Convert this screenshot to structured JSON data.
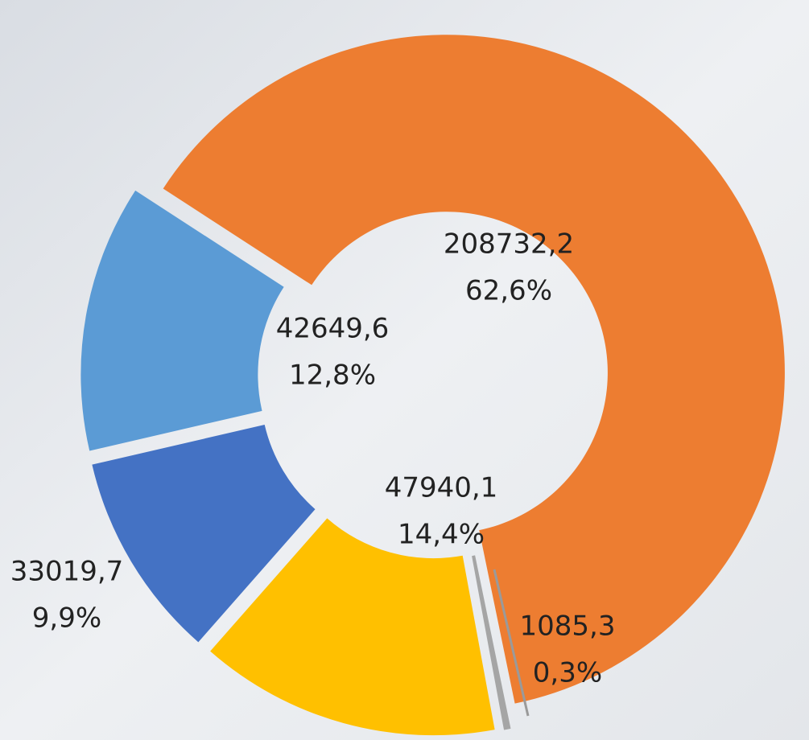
{
  "chart_data": {
    "type": "donut",
    "values": [
      208732.2,
      1085.3,
      47940.1,
      33019.7,
      42649.6
    ],
    "value_labels": [
      "208732,2",
      "1085,3",
      "47940,1",
      "33019,7",
      "42649,6"
    ],
    "percents": [
      62.6,
      0.3,
      14.4,
      9.9,
      12.8
    ],
    "percent_labels": [
      "62,6%",
      "0,3%",
      "14,4%",
      "9,9%",
      "12,8%"
    ],
    "colors": [
      "#ED7D31",
      "#A5A5A5",
      "#FFC000",
      "#4472C4",
      "#5B9BD5"
    ]
  }
}
